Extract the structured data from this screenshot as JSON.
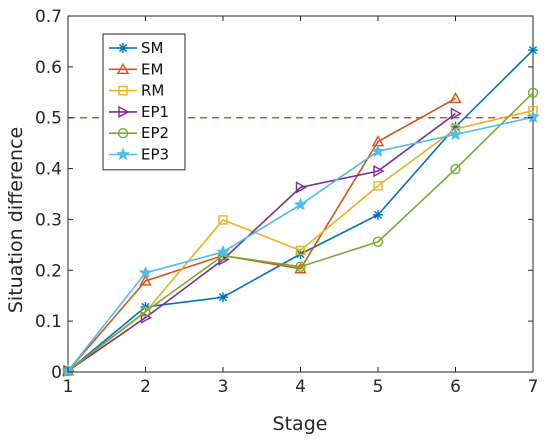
{
  "chart_data": {
    "type": "line",
    "title": "",
    "xlabel": "Stage",
    "ylabel": "Situation difference",
    "xlim": [
      1,
      7
    ],
    "ylim": [
      0,
      0.7
    ],
    "xticks": [
      "1",
      "2",
      "3",
      "4",
      "5",
      "6",
      "7"
    ],
    "yticks": [
      "0",
      "0.1",
      "0.2",
      "0.3",
      "0.4",
      "0.5",
      "0.6",
      "0.7"
    ],
    "grid": false,
    "legend_position": "top-left",
    "reference_line": {
      "y": 0.5,
      "style": "dashed",
      "color": "#c0392b"
    },
    "series": [
      {
        "name": "SM",
        "color": "#0072BD",
        "marker": "asterisk",
        "x": [
          1,
          2,
          3,
          4,
          5,
          6,
          7
        ],
        "values": [
          0.002,
          0.128,
          0.147,
          0.232,
          0.309,
          0.482,
          0.633
        ]
      },
      {
        "name": "EM",
        "color": "#D95319",
        "marker": "triangle",
        "x": [
          1,
          2,
          3,
          4,
          5,
          6
        ],
        "values": [
          0.002,
          0.179,
          0.229,
          0.203,
          0.453,
          0.538
        ]
      },
      {
        "name": "RM",
        "color": "#EDB120",
        "marker": "square",
        "x": [
          1,
          2,
          3,
          4,
          5,
          6,
          7
        ],
        "values": [
          0.002,
          0.118,
          0.299,
          0.239,
          0.366,
          0.478,
          0.514
        ]
      },
      {
        "name": "EP1",
        "color": "#7E2F8E",
        "marker": "triangle-right",
        "x": [
          1,
          2,
          3,
          4,
          5,
          6
        ],
        "values": [
          0.002,
          0.107,
          0.221,
          0.363,
          0.395,
          0.508
        ]
      },
      {
        "name": "EP2",
        "color": "#77AC30",
        "marker": "circle",
        "x": [
          1,
          2,
          3,
          4,
          5,
          6,
          7
        ],
        "values": [
          0.002,
          0.119,
          0.229,
          0.207,
          0.256,
          0.399,
          0.549
        ]
      },
      {
        "name": "EP3",
        "color": "#4DBEEE",
        "marker": "star",
        "x": [
          1,
          2,
          3,
          4,
          5,
          6,
          7
        ],
        "values": [
          0.002,
          0.195,
          0.236,
          0.329,
          0.434,
          0.467,
          0.501
        ]
      }
    ]
  }
}
